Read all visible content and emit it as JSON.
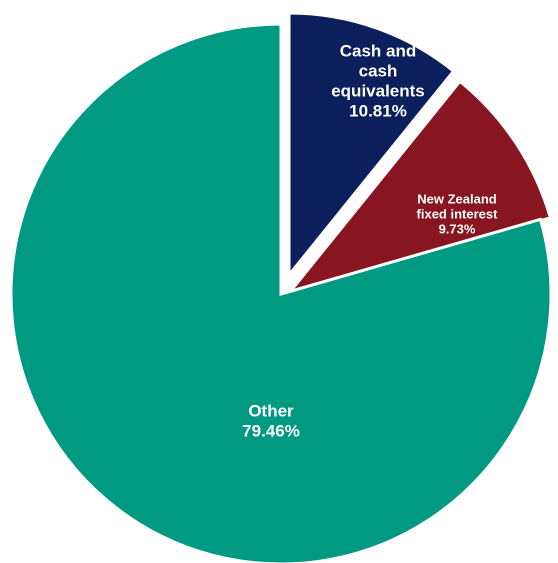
{
  "chart_data": {
    "type": "pie",
    "slices": [
      {
        "label_lines": [
          "Cash and",
          "cash",
          "equivalents"
        ],
        "percent_label": "10.81%",
        "value": 10.81,
        "color": "#0b1f5c"
      },
      {
        "label_lines": [
          "New Zealand",
          "fixed interest"
        ],
        "percent_label": "9.73%",
        "value": 9.73,
        "color": "#871620"
      },
      {
        "label_lines": [
          "Other"
        ],
        "percent_label": "79.46%",
        "value": 79.46,
        "color": "#009a82"
      }
    ],
    "start_angle_deg": 0,
    "direction": "clockwise",
    "exploded": "all",
    "legend": "none"
  }
}
